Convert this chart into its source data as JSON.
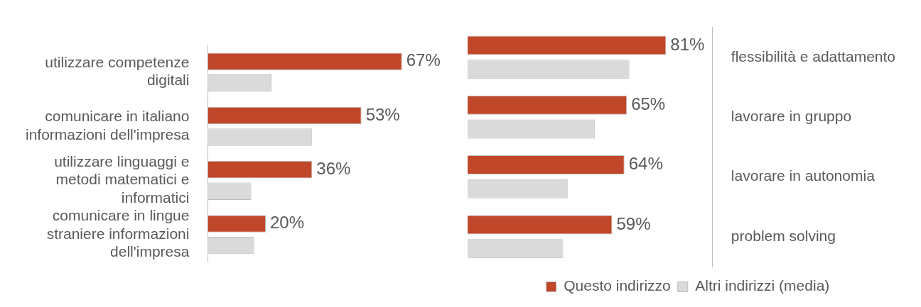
{
  "chart_data": [
    {
      "type": "bar",
      "orientation": "horizontal",
      "categories": [
        "utilizzare competenze digitali",
        "comunicare in italiano informazioni dell'impresa",
        "utilizzare linguaggi e metodi matematici e informatici",
        "comunicare in lingue straniere informazioni dell'impresa"
      ],
      "series": [
        {
          "color": "#c0472a",
          "values": [
            67,
            53,
            36,
            20
          ],
          "value_labels": [
            "67%",
            "53%",
            "36%",
            "20%"
          ]
        },
        {
          "color": "#dadada",
          "values": [
            22,
            36,
            15,
            16
          ]
        }
      ],
      "tick_labels": "y",
      "grid": false,
      "legend": false
    },
    {
      "type": "bar",
      "orientation": "horizontal",
      "categories": [
        "flessibilità e adattamento",
        "lavorare in gruppo",
        "lavorare in autonomia",
        "problem solving"
      ],
      "series": [
        {
          "name": "Questo indirizzo",
          "color": "#c0472a",
          "values": [
            81,
            65,
            64,
            59
          ],
          "value_labels": [
            "81%",
            "65%",
            "64%",
            "59%"
          ]
        },
        {
          "name": "Altri indirizzi (media)",
          "color": "#dadada",
          "values": [
            66,
            52,
            41,
            39
          ]
        }
      ],
      "tick_labels": "y",
      "grid": false,
      "legend": "bottom"
    }
  ]
}
